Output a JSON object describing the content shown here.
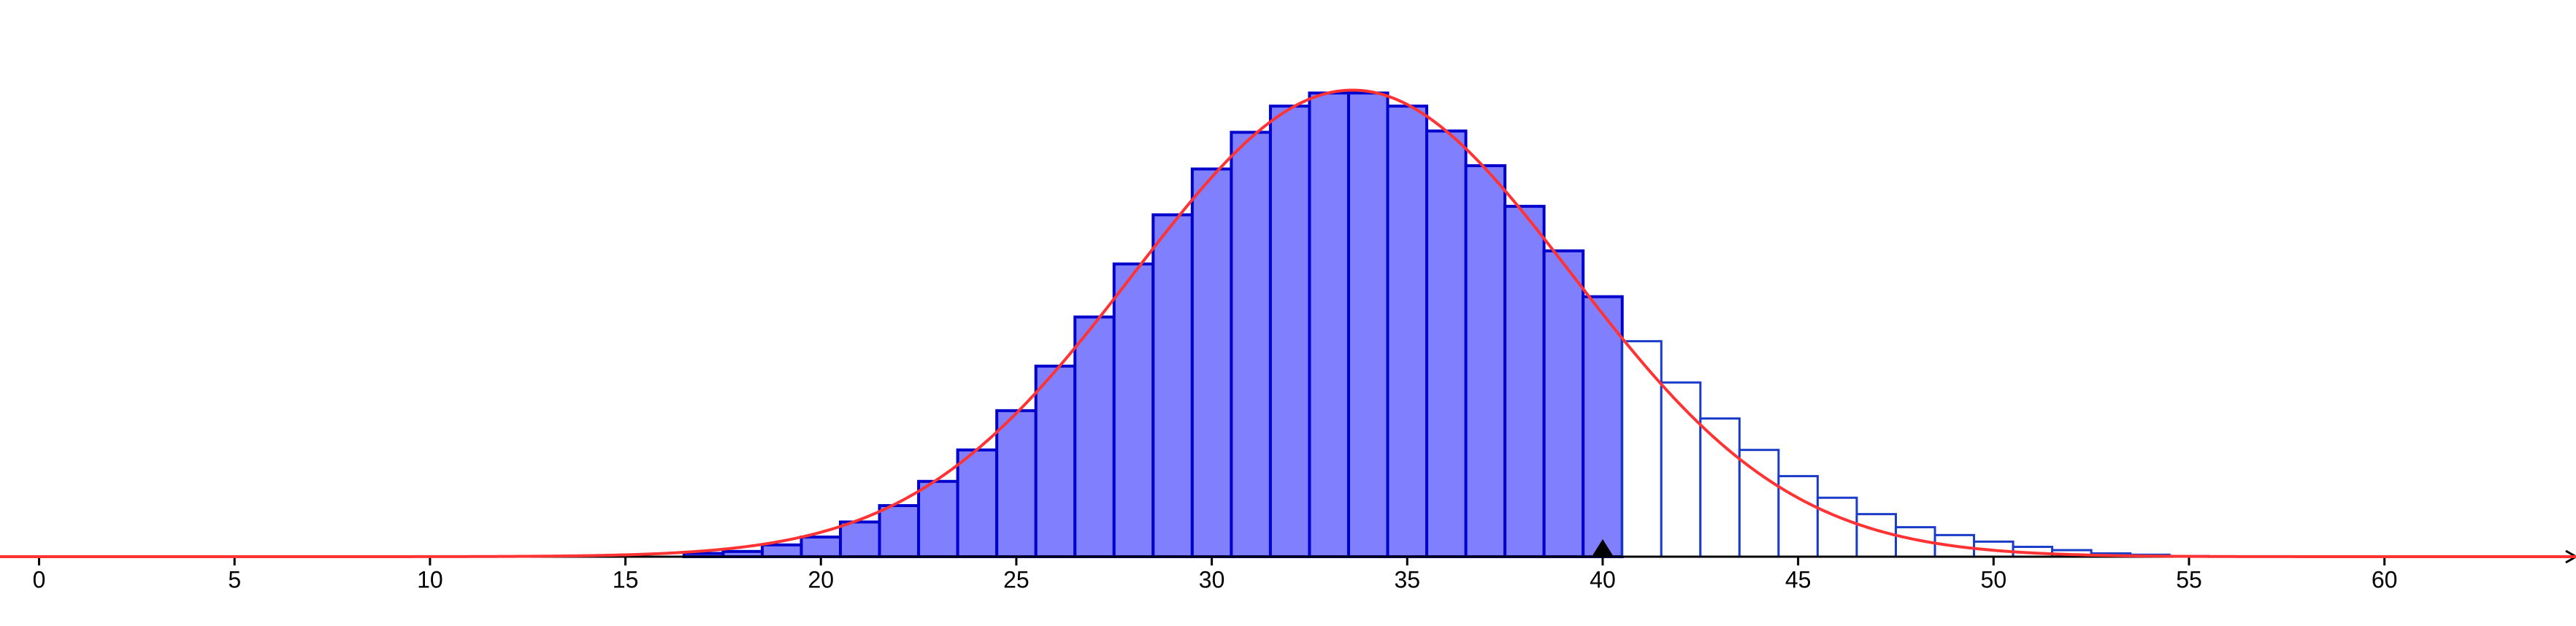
{
  "chart_data": {
    "type": "histogram",
    "bins": [
      16.5,
      17.5,
      18.5,
      19.5,
      20.5,
      21.5,
      22.5,
      23.5,
      24.5,
      25.5,
      26.5,
      27.5,
      28.5,
      29.5,
      30.5,
      31.5,
      32.5,
      33.5,
      34.5,
      35.5,
      36.5,
      37.5,
      38.5,
      39.5,
      40.5,
      41.5,
      42.5,
      43.5,
      44.5,
      45.5,
      46.5,
      47.5,
      48.5,
      49.5,
      50.5,
      51.5,
      52.5,
      53.5,
      54.5,
      55.5
    ],
    "values": [
      0.0005,
      0.0008,
      0.0018,
      0.003,
      0.0053,
      0.0078,
      0.0115,
      0.0163,
      0.0223,
      0.0291,
      0.0366,
      0.0447,
      0.0522,
      0.0592,
      0.0648,
      0.0688,
      0.0708,
      0.0708,
      0.0688,
      0.065,
      0.0597,
      0.0535,
      0.0467,
      0.0397,
      0.0329,
      0.0266,
      0.0211,
      0.0163,
      0.0123,
      0.009,
      0.0065,
      0.0045,
      0.0033,
      0.0023,
      0.0015,
      0.001,
      0.0005,
      0.0003,
      0.0001
    ],
    "color": "#8080ff",
    "edge_color": "#0000cc",
    "outline_color": "#1a3cc8",
    "highlight_to": 40,
    "curve": {
      "mean": 33.6,
      "sd": 5.6,
      "color": "#ff3333"
    },
    "xlim": [
      -1,
      64.9
    ],
    "ylim": [
      0,
      0.085
    ],
    "xticks": [
      0,
      5,
      10,
      15,
      20,
      25,
      30,
      35,
      40,
      45,
      50,
      55,
      60
    ]
  }
}
